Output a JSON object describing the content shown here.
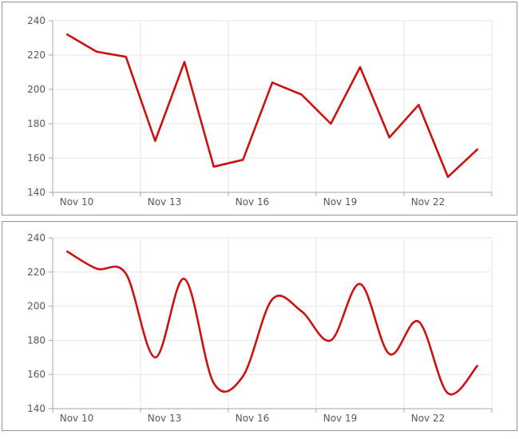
{
  "colors": {
    "line": "#cc1111",
    "grid": "#e5e5e5",
    "axis": "#a6a6a6",
    "tick": "#a6a6a6",
    "label_text": "#4e5a65",
    "panel_border": "#949494",
    "background": "#ffffff"
  },
  "chart_data": [
    {
      "type": "line",
      "interpolation": "linear",
      "title": "",
      "xlabel": "",
      "ylabel": "",
      "x": [
        "Nov 10",
        "Nov 11",
        "Nov 12",
        "Nov 13",
        "Nov 14",
        "Nov 15",
        "Nov 16",
        "Nov 17",
        "Nov 18",
        "Nov 19",
        "Nov 20",
        "Nov 21",
        "Nov 22",
        "Nov 23",
        "Nov 24"
      ],
      "values": [
        232,
        222,
        219,
        170,
        216,
        155,
        159,
        204,
        197,
        180,
        213,
        172,
        191,
        149,
        165
      ],
      "x_tick_labels": [
        "Nov 10",
        "Nov 13",
        "Nov 16",
        "Nov 19",
        "Nov 22"
      ],
      "y_tick_labels": [
        "240",
        "220",
        "200",
        "180",
        "160",
        "140"
      ],
      "y_tick_values": [
        240,
        220,
        200,
        180,
        160,
        140
      ],
      "ylim": [
        140,
        240
      ],
      "grid": true,
      "legend_position": "none"
    },
    {
      "type": "line",
      "interpolation": "spline",
      "title": "",
      "xlabel": "",
      "ylabel": "",
      "x": [
        "Nov 10",
        "Nov 11",
        "Nov 12",
        "Nov 13",
        "Nov 14",
        "Nov 15",
        "Nov 16",
        "Nov 17",
        "Nov 18",
        "Nov 19",
        "Nov 20",
        "Nov 21",
        "Nov 22",
        "Nov 23",
        "Nov 24"
      ],
      "values": [
        232,
        222,
        219,
        170,
        216,
        155,
        159,
        204,
        197,
        180,
        213,
        172,
        191,
        149,
        165
      ],
      "x_tick_labels": [
        "Nov 10",
        "Nov 13",
        "Nov 16",
        "Nov 19",
        "Nov 22"
      ],
      "y_tick_labels": [
        "240",
        "220",
        "200",
        "180",
        "160",
        "140"
      ],
      "y_tick_values": [
        240,
        220,
        200,
        180,
        160,
        140
      ],
      "ylim": [
        140,
        240
      ],
      "grid": true,
      "legend_position": "none"
    }
  ]
}
